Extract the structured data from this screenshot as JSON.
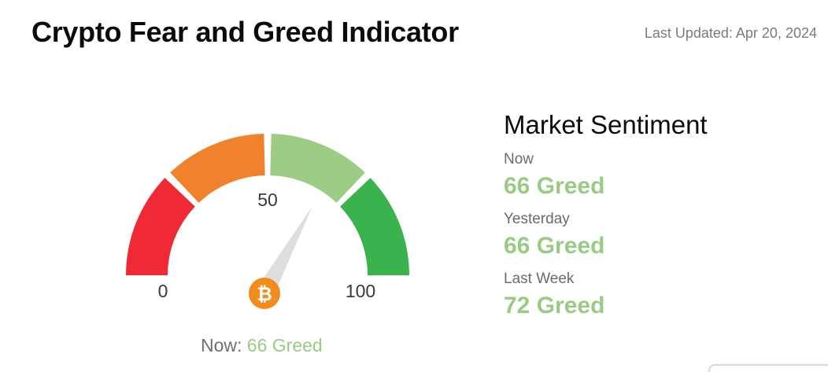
{
  "header": {
    "title": "Crypto Fear and Greed Indicator",
    "last_updated": "Last Updated: Apr 20, 2024"
  },
  "gauge": {
    "value": 66,
    "min_label": "0",
    "mid_label": "50",
    "max_label": "100",
    "segments": [
      {
        "from": 0,
        "to": 25,
        "color": "#ef2a35"
      },
      {
        "from": 25,
        "to": 50,
        "color": "#f0812d"
      },
      {
        "from": 50,
        "to": 75,
        "color": "#9dcd84"
      },
      {
        "from": 75,
        "to": 100,
        "color": "#3ab24d"
      }
    ],
    "needle_color": "#dedede",
    "hub_icon": "bitcoin-icon",
    "hub_glyph": "₿",
    "hub_color": "#f28c1c",
    "now_prefix": "Now:",
    "now_value": "66 Greed"
  },
  "sentiment": {
    "title": "Market Sentiment",
    "rows": [
      {
        "label": "Now",
        "value": "66 Greed"
      },
      {
        "label": "Yesterday",
        "value": "66 Greed"
      },
      {
        "label": "Last Week",
        "value": "72 Greed"
      }
    ]
  },
  "colors": {
    "greed": "#98cc84"
  }
}
